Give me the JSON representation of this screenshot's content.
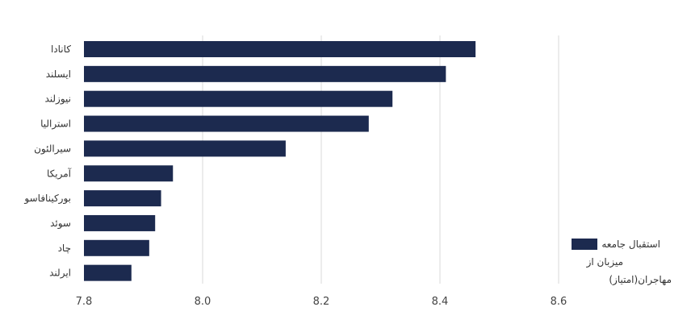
{
  "chart_data": {
    "type": "bar",
    "orientation": "horizontal",
    "categories": [
      "کانادا",
      "ایسلند",
      "نیوزلند",
      "استرالیا",
      "سیرالئون",
      "آمریکا",
      "بورکینافاسو",
      "سوئد",
      "چاد",
      "ایرلند"
    ],
    "series": [
      {
        "name": "استقبال جامعه میزبان از مهاجران(امتیاز)",
        "values": [
          8.46,
          8.41,
          8.32,
          8.28,
          8.14,
          7.95,
          7.93,
          7.92,
          7.91,
          7.88
        ],
        "color": "#1c2a4f"
      }
    ],
    "xlim": [
      7.8,
      8.6
    ],
    "xticks": [
      "7.8",
      "8.0",
      "8.2",
      "8.4",
      "8.6"
    ],
    "grid": true,
    "legend_position": "right",
    "legend_lines": [
      "استقبال جامعه",
      "میزبان از",
      "مهاجران(امتیاز)"
    ]
  }
}
